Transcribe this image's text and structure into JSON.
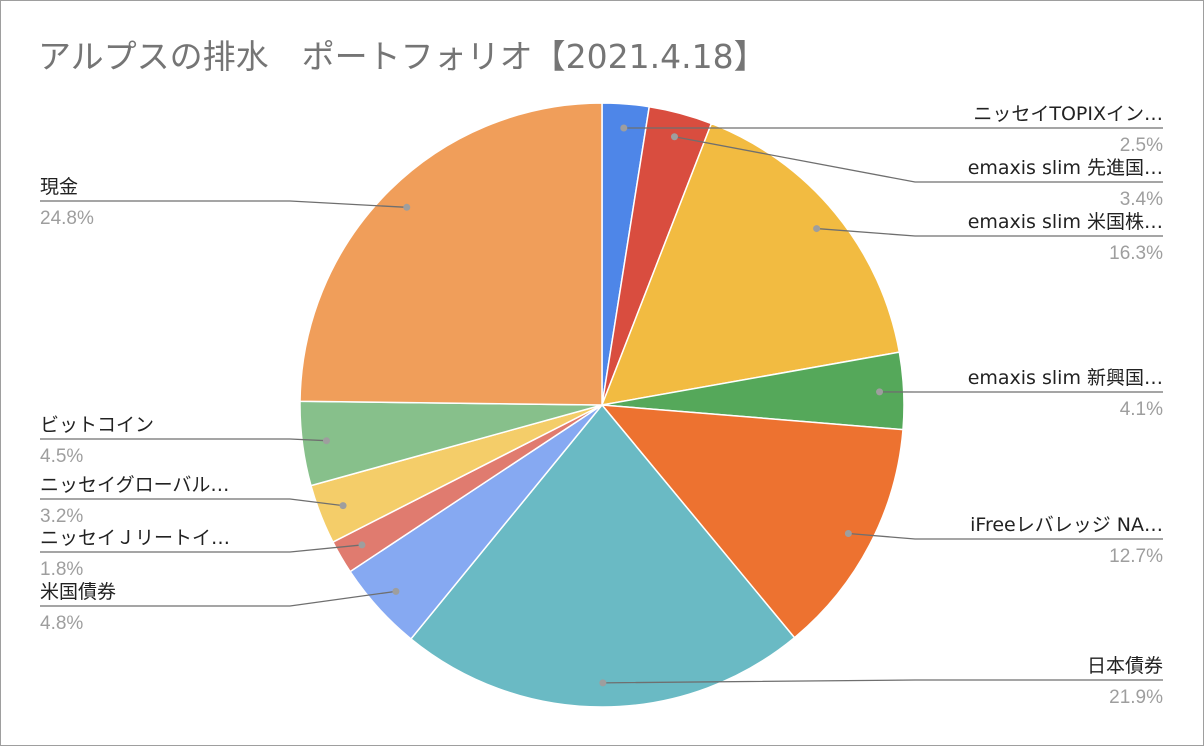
{
  "chart_data": {
    "type": "pie",
    "title": "アルプスの排水　ポートフォリオ【2021.4.18】",
    "slices": [
      {
        "label": "ニッセイTOPIXイン…",
        "value": 2.5,
        "display": "2.5%",
        "color": "#4e86e8"
      },
      {
        "label": "emaxis slim 先進国…",
        "value": 3.4,
        "display": "3.4%",
        "color": "#d94d3f"
      },
      {
        "label": "emaxis slim 米国株…",
        "value": 16.3,
        "display": "16.3%",
        "color": "#f2bb41"
      },
      {
        "label": "emaxis slim 新興国…",
        "value": 4.1,
        "display": "4.1%",
        "color": "#55a85a"
      },
      {
        "label": "iFreeレバレッジ NA…",
        "value": 12.7,
        "display": "12.7%",
        "color": "#ed7230"
      },
      {
        "label": "日本債券",
        "value": 21.9,
        "display": "21.9%",
        "color": "#6abac4"
      },
      {
        "label": "米国債券",
        "value": 4.8,
        "display": "4.8%",
        "color": "#86a9f2"
      },
      {
        "label": "ニッセイＪリートイ…",
        "value": 1.8,
        "display": "1.8%",
        "color": "#e07b6f"
      },
      {
        "label": "ニッセイグローバル…",
        "value": 3.2,
        "display": "3.2%",
        "color": "#f4cd69"
      },
      {
        "label": "ビットコイン",
        "value": 4.5,
        "display": "4.5%",
        "color": "#87c08b"
      },
      {
        "label": "現金",
        "value": 24.8,
        "display": "24.8%",
        "color": "#f09e5a"
      }
    ],
    "legend": "none (callout labels around pie)"
  }
}
